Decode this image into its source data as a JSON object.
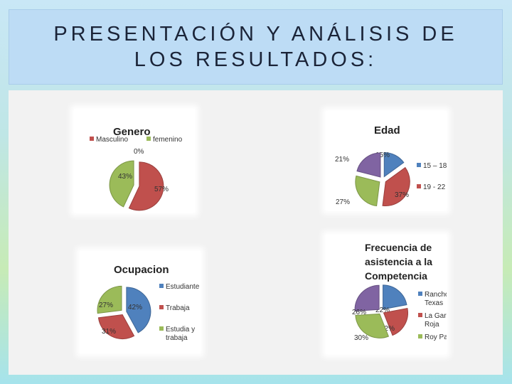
{
  "slide": {
    "title": "PRESENTACIÓN Y ANÁLISIS DE LOS RESULTADOS:"
  },
  "colors": {
    "blue": "#4f81bd",
    "red": "#c0504d",
    "green": "#9bbb59",
    "purple": "#8064a2"
  },
  "chart_data": [
    {
      "type": "pie",
      "title": [
        "Genero"
      ],
      "legend": [
        "Masculino",
        "femenino"
      ],
      "slices": [
        {
          "label": "Masculino",
          "value": 57,
          "data_label": "57%",
          "color": "red"
        },
        {
          "label": "femenino",
          "value": 43,
          "data_label": "43%",
          "color": "green"
        },
        {
          "label": "",
          "value": 0,
          "data_label": "0%",
          "color": "blue"
        }
      ],
      "legend_position": "top"
    },
    {
      "type": "pie",
      "title": [
        "Edad"
      ],
      "legend": [
        "15 – 18",
        "19 - 22"
      ],
      "slices": [
        {
          "label": "15 – 18",
          "value": 15,
          "data_label": "15%",
          "color": "blue"
        },
        {
          "label": "19 - 22",
          "value": 37,
          "data_label": "37%",
          "color": "red"
        },
        {
          "label": "",
          "value": 27,
          "data_label": "27%",
          "color": "green"
        },
        {
          "label": "",
          "value": 21,
          "data_label": "21%",
          "color": "purple"
        }
      ],
      "legend_position": "right"
    },
    {
      "type": "pie",
      "title": [
        "Ocupacion"
      ],
      "legend": [
        "Estudiante",
        "Trabaja",
        "Estudia y trabaja"
      ],
      "slices": [
        {
          "label": "Estudiante",
          "value": 42,
          "data_label": "42%",
          "color": "blue"
        },
        {
          "label": "Trabaja",
          "value": 31,
          "data_label": "31%",
          "color": "red"
        },
        {
          "label": "Estudia y trabaja",
          "value": 27,
          "data_label": "27%",
          "color": "green"
        }
      ],
      "legend_position": "right"
    },
    {
      "type": "pie",
      "title": [
        "Frecuencia de",
        "asistencia a la",
        "Competencia"
      ],
      "legend": [
        "Rancho Texas",
        "La Garza Roja",
        "Roy Park"
      ],
      "slices": [
        {
          "label": "Rancho Texas",
          "value": 22,
          "data_label": "22%",
          "color": "blue"
        },
        {
          "label": "La Garza Roja",
          "value": 22,
          "data_label": "22%",
          "color": "red"
        },
        {
          "label": "Roy Park",
          "value": 30,
          "data_label": "30%",
          "color": "green"
        },
        {
          "label": "",
          "value": 26,
          "data_label": "26%",
          "color": "purple"
        }
      ],
      "legend_position": "right"
    }
  ]
}
